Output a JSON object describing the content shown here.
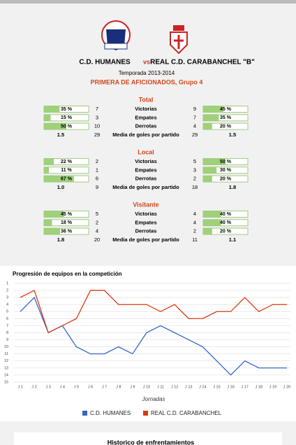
{
  "match": {
    "home": "C.D. HUMANES",
    "vs": "vs",
    "away": "REAL C.D. CARABANCHEL \"B\"",
    "season": "Temporada 2013-2014",
    "competition": "PRIMERA DE AFICIONADOS, Grupo 4"
  },
  "sections": [
    {
      "title": "Total",
      "rows": [
        {
          "label": "Victorias",
          "home": {
            "pct": {
              "value": 35,
              "label": "35 %"
            },
            "count": 7
          },
          "away": {
            "pct": {
              "value": 45,
              "label": "45 %"
            },
            "count": 9
          }
        },
        {
          "label": "Empates",
          "home": {
            "pct": {
              "value": 15,
              "label": "15 %"
            },
            "count": 3
          },
          "away": {
            "pct": {
              "value": 35,
              "label": "35 %"
            },
            "count": 7
          }
        },
        {
          "label": "Derrotas",
          "home": {
            "pct": {
              "value": 50,
              "label": "50 %"
            },
            "count": 10
          },
          "away": {
            "pct": {
              "value": 20,
              "label": "20 %"
            },
            "count": 4
          }
        }
      ],
      "media": {
        "label": "Media de goles por partido",
        "home": {
          "avg": "1.5",
          "goals": 29
        },
        "away": {
          "avg": "1.5",
          "goals": 29
        }
      }
    },
    {
      "title": "Local",
      "rows": [
        {
          "label": "Victorias",
          "home": {
            "pct": {
              "value": 22,
              "label": "22 %"
            },
            "count": 2
          },
          "away": {
            "pct": {
              "value": 50,
              "label": "50 %"
            },
            "count": 5
          }
        },
        {
          "label": "Empates",
          "home": {
            "pct": {
              "value": 11,
              "label": "11 %"
            },
            "count": 1
          },
          "away": {
            "pct": {
              "value": 30,
              "label": "30 %"
            },
            "count": 3
          }
        },
        {
          "label": "Derrotas",
          "home": {
            "pct": {
              "value": 67,
              "label": "67 %"
            },
            "count": 6
          },
          "away": {
            "pct": {
              "value": 20,
              "label": "20 %"
            },
            "count": 2
          }
        }
      ],
      "media": {
        "label": "Media de goles por partido",
        "home": {
          "avg": "1.0",
          "goals": 9
        },
        "away": {
          "avg": "1.8",
          "goals": 18
        }
      }
    },
    {
      "title": "Visitante",
      "rows": [
        {
          "label": "Victorias",
          "home": {
            "pct": {
              "value": 45,
              "label": "45 %"
            },
            "count": 5
          },
          "away": {
            "pct": {
              "value": 40,
              "label": "40 %"
            },
            "count": 4
          }
        },
        {
          "label": "Empates",
          "home": {
            "pct": {
              "value": 18,
              "label": "18 %"
            },
            "count": 2
          },
          "away": {
            "pct": {
              "value": 40,
              "label": "40 %"
            },
            "count": 4
          }
        },
        {
          "label": "Derrotas",
          "home": {
            "pct": {
              "value": 36,
              "label": "36 %"
            },
            "count": 4
          },
          "away": {
            "pct": {
              "value": 20,
              "label": "20 %"
            },
            "count": 2
          }
        }
      ],
      "media": {
        "label": "Media de goles por partido",
        "home": {
          "avg": "1.8",
          "goals": 20
        },
        "away": {
          "avg": "1.1",
          "goals": 11
        }
      }
    }
  ],
  "chart_data": {
    "type": "line",
    "title": "Progresión de equipos en la competición",
    "x_label": "Jornadas",
    "categories": [
      "J 1",
      "J 2",
      "J 3",
      "J 4",
      "J 5",
      "J 6",
      "J 7",
      "J 8",
      "J 9",
      "J 10",
      "J 11",
      "J 12",
      "J 13",
      "J 14",
      "J 15",
      "J 16",
      "J 17",
      "J 18",
      "J 19",
      "J 20"
    ],
    "series": [
      {
        "name": "C.D. HUMANES",
        "color": "#3366cc",
        "values": [
          5,
          3,
          8,
          7,
          10,
          11,
          11,
          10,
          11,
          8,
          7,
          8,
          9,
          10,
          12,
          14,
          12,
          13,
          13,
          13
        ]
      },
      {
        "name": "REAL C.D. CARABANCHEL",
        "color": "#dc3912",
        "values": [
          3,
          2,
          8,
          7,
          6,
          2,
          2,
          4,
          4,
          4,
          5,
          4,
          6,
          6,
          5,
          5,
          3,
          5,
          4,
          4
        ]
      }
    ],
    "ylim": [
      15,
      1
    ],
    "yticks": [
      1,
      2,
      3,
      4,
      5,
      6,
      7,
      8,
      9,
      10,
      11,
      12,
      13,
      14,
      15
    ],
    "grid": true
  },
  "footer": {
    "title": "Historico de enfrentamientos"
  }
}
